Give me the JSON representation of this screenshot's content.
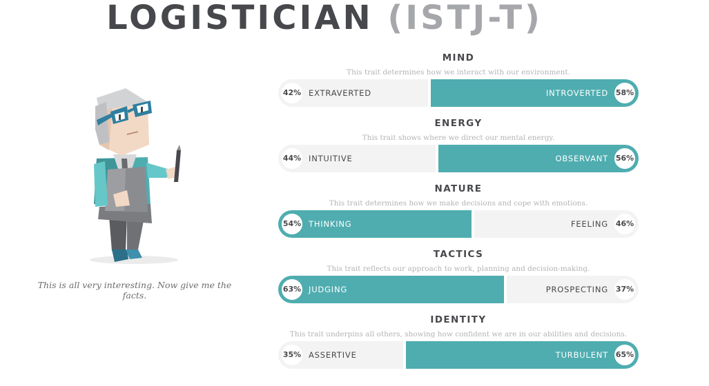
{
  "header": {
    "type_name": "LOGISTICIAN",
    "type_code": "(ISTJ-T)"
  },
  "quote": "This is all very interesting. Now give me the facts.",
  "colors": {
    "teal": "#4fadb0",
    "gray_track": "#f3f3f3",
    "heading": "#47484b"
  },
  "traits": [
    {
      "name": "MIND",
      "description": "This trait determines how we interact with our environment.",
      "left_label": "EXTRAVERTED",
      "left_percent": "42%",
      "right_label": "INTROVERTED",
      "right_percent": "58%",
      "left_value": 42,
      "dominant": "right"
    },
    {
      "name": "ENERGY",
      "description": "This trait shows where we direct our mental energy.",
      "left_label": "INTUITIVE",
      "left_percent": "44%",
      "right_label": "OBSERVANT",
      "right_percent": "56%",
      "left_value": 44,
      "dominant": "right"
    },
    {
      "name": "NATURE",
      "description": "This trait determines how we make decisions and cope with emotions.",
      "left_label": "THINKING",
      "left_percent": "54%",
      "right_label": "FEELING",
      "right_percent": "46%",
      "left_value": 54,
      "dominant": "left"
    },
    {
      "name": "TACTICS",
      "description": "This trait reflects our approach to work, planning and decision-making.",
      "left_label": "JUDGING",
      "left_percent": "63%",
      "right_label": "PROSPECTING",
      "right_percent": "37%",
      "left_value": 63,
      "dominant": "left"
    },
    {
      "name": "IDENTITY",
      "description": "This trait underpins all others, showing how confident we are in our abilities and decisions.",
      "left_label": "ASSERTIVE",
      "left_percent": "35%",
      "right_label": "TURBULENT",
      "right_percent": "65%",
      "left_value": 35,
      "dominant": "right"
    }
  ]
}
